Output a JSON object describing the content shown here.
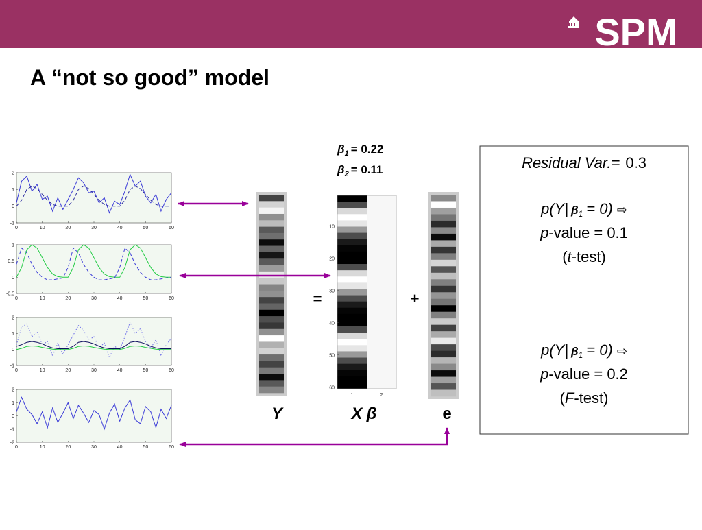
{
  "header": {
    "logo": "SPM"
  },
  "title": "A “not so good” model",
  "plots": [
    {
      "xlim": [
        0,
        60
      ],
      "ylim": [
        -1,
        2
      ],
      "xticks": [
        0,
        10,
        20,
        30,
        40,
        50,
        60
      ],
      "yticks": [
        -1,
        0,
        1,
        2
      ],
      "x": [
        0,
        2,
        4,
        6,
        8,
        10,
        12,
        14,
        16,
        18,
        20,
        22,
        24,
        26,
        28,
        30,
        32,
        34,
        36,
        38,
        40,
        42,
        44,
        46,
        48,
        50,
        52,
        54,
        56,
        58,
        60
      ],
      "series": [
        {
          "color": "#3a3ad8",
          "style": "solid",
          "values": [
            0.2,
            1.5,
            1.8,
            0.9,
            1.3,
            0.4,
            0.6,
            -0.3,
            0.5,
            -0.2,
            0.4,
            1.0,
            1.7,
            1.4,
            0.8,
            0.9,
            0.2,
            0.5,
            -0.4,
            0.3,
            0.1,
            0.9,
            1.9,
            1.2,
            1.5,
            0.6,
            0.2,
            0.7,
            -0.3,
            0.4,
            0.8
          ]
        },
        {
          "color": "#2a2aa0",
          "style": "dashed",
          "values": [
            0,
            0.35,
            1,
            1.2,
            1.05,
            0.7,
            0.35,
            0.1,
            0,
            0,
            0,
            0.35,
            1,
            1.2,
            1.05,
            0.7,
            0.35,
            0.1,
            0,
            0,
            0,
            0.35,
            1,
            1.2,
            1.05,
            0.7,
            0.35,
            0.1,
            0,
            0,
            0
          ]
        }
      ]
    },
    {
      "xlim": [
        0,
        60
      ],
      "ylim": [
        -0.5,
        1
      ],
      "xticks": [
        0,
        10,
        20,
        30,
        40,
        50,
        60
      ],
      "yticks": [
        -0.5,
        0,
        0.5,
        1
      ],
      "x": [
        0,
        2,
        4,
        6,
        8,
        10,
        12,
        14,
        16,
        18,
        20,
        22,
        24,
        26,
        28,
        30,
        32,
        34,
        36,
        38,
        40,
        42,
        44,
        46,
        48,
        50,
        52,
        54,
        56,
        58,
        60
      ],
      "series": [
        {
          "color": "#22cc44",
          "style": "solid",
          "values": [
            0,
            0.3,
            0.85,
            1,
            0.9,
            0.6,
            0.3,
            0.1,
            0.02,
            0,
            0,
            0.3,
            0.85,
            1,
            0.9,
            0.6,
            0.3,
            0.1,
            0.02,
            0,
            0,
            0.3,
            0.85,
            1,
            0.9,
            0.6,
            0.3,
            0.1,
            0.02,
            0,
            0
          ]
        },
        {
          "color": "#3a3ad8",
          "style": "dashed",
          "values": [
            0.4,
            0.9,
            0.75,
            0.4,
            0.15,
            0,
            -0.08,
            -0.08,
            -0.05,
            -0.02,
            0.3,
            0.9,
            0.75,
            0.4,
            0.15,
            0,
            -0.08,
            -0.08,
            -0.05,
            -0.02,
            0.3,
            0.9,
            0.75,
            0.4,
            0.15,
            0,
            -0.08,
            -0.08,
            -0.05,
            -0.02,
            0
          ]
        }
      ]
    },
    {
      "xlim": [
        0,
        60
      ],
      "ylim": [
        -1,
        2
      ],
      "xticks": [
        0,
        10,
        20,
        30,
        40,
        50,
        60
      ],
      "yticks": [
        -1,
        0,
        1,
        2
      ],
      "x": [
        0,
        2,
        4,
        6,
        8,
        10,
        12,
        14,
        16,
        18,
        20,
        22,
        24,
        26,
        28,
        30,
        32,
        34,
        36,
        38,
        40,
        42,
        44,
        46,
        48,
        50,
        52,
        54,
        56,
        58,
        60
      ],
      "series": [
        {
          "color": "#6a6ae8",
          "style": "dotted",
          "values": [
            0.3,
            1.4,
            1.6,
            0.8,
            1.1,
            0.3,
            0.5,
            -0.4,
            0.4,
            -0.3,
            0.3,
            0.9,
            1.5,
            1.2,
            0.6,
            0.8,
            0.1,
            0.4,
            -0.5,
            0.2,
            0,
            0.8,
            1.7,
            1.0,
            1.3,
            0.5,
            0.1,
            0.6,
            -0.4,
            0.3,
            0.7
          ]
        },
        {
          "color": "#101060",
          "style": "solid",
          "values": [
            0.2,
            0.3,
            0.45,
            0.5,
            0.45,
            0.35,
            0.2,
            0.1,
            0.05,
            0.05,
            0.05,
            0.2,
            0.45,
            0.5,
            0.45,
            0.35,
            0.2,
            0.1,
            0.05,
            0.05,
            0.05,
            0.2,
            0.45,
            0.5,
            0.45,
            0.35,
            0.2,
            0.1,
            0.05,
            0.05,
            0.05
          ]
        },
        {
          "color": "#22cc44",
          "style": "solid",
          "values": [
            0,
            0.07,
            0.19,
            0.22,
            0.2,
            0.13,
            0.07,
            0.02,
            0,
            0,
            0,
            0.07,
            0.19,
            0.22,
            0.2,
            0.13,
            0.07,
            0.02,
            0,
            0,
            0,
            0.07,
            0.19,
            0.22,
            0.2,
            0.13,
            0.07,
            0.02,
            0,
            0,
            0
          ]
        }
      ]
    },
    {
      "xlim": [
        0,
        60
      ],
      "ylim": [
        -2,
        2
      ],
      "xticks": [
        0,
        10,
        20,
        30,
        40,
        50,
        60
      ],
      "yticks": [
        -2,
        -1,
        0,
        1,
        2
      ],
      "x": [
        0,
        2,
        4,
        6,
        8,
        10,
        12,
        14,
        16,
        18,
        20,
        22,
        24,
        26,
        28,
        30,
        32,
        34,
        36,
        38,
        40,
        42,
        44,
        46,
        48,
        50,
        52,
        54,
        56,
        58,
        60
      ],
      "series": [
        {
          "color": "#3a3ad8",
          "style": "solid",
          "values": [
            0.3,
            1.4,
            0.5,
            0.1,
            -0.6,
            0.3,
            -0.9,
            0.6,
            -0.5,
            0.2,
            1.0,
            -0.2,
            0.8,
            0.2,
            -0.5,
            0.4,
            0.1,
            -1.0,
            0.2,
            0.9,
            -0.4,
            0.6,
            1.2,
            -0.3,
            -0.6,
            0.7,
            0.3,
            -0.9,
            0.5,
            -0.2,
            0.8
          ]
        }
      ]
    }
  ],
  "design_matrix": {
    "ylim": [
      0.5,
      60.5
    ],
    "yticks": [
      10,
      20,
      30,
      40,
      50,
      60
    ],
    "xticks": [
      1,
      2
    ]
  },
  "betas": [
    {
      "symbol": "β",
      "sub": "1",
      "text": "= 0.22"
    },
    {
      "symbol": "β",
      "sub": "2",
      "text": "= 0.11"
    }
  ],
  "labels": {
    "y": "Y",
    "x": "X",
    "beta": "β",
    "e": "e",
    "equals": "=",
    "plus": "+"
  },
  "residual": {
    "label": "Residual Var.=",
    "value": "0.3"
  },
  "tests": [
    {
      "pre": "p(Y|",
      "symbol": "β",
      "sub": "1",
      "post": "= 0)",
      "arrow": "⇨",
      "p": "p",
      "pvalue": "-value = 0.1",
      "open": "(",
      "test": "t",
      "close": "-test)"
    },
    {
      "pre": "p(Y|",
      "symbol": "β",
      "sub": "1",
      "post": "= 0)",
      "arrow": "⇨",
      "p": "p",
      "pvalue": "-value = 0.2",
      "open": "(",
      "test": "F",
      "close": "-test)"
    }
  ]
}
